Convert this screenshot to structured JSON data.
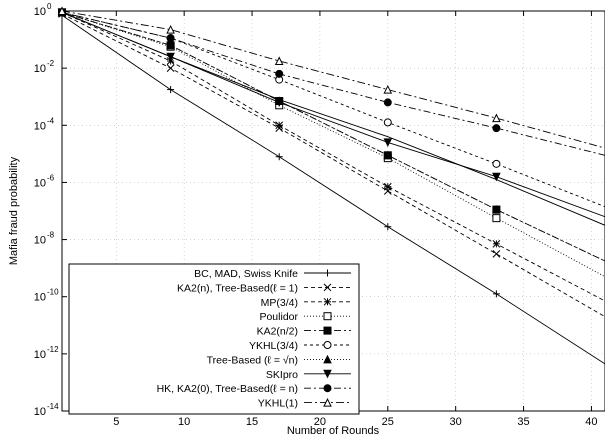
{
  "chart_data": {
    "type": "line",
    "title": "",
    "xlabel": "Number of Rounds",
    "ylabel": "Mafia fraud probability",
    "xlim": [
      1,
      41
    ],
    "ylim_log10": [
      -14,
      0
    ],
    "y_scale": "log",
    "grid": true,
    "legend_position": "bottom-left",
    "x_ticks": [
      "5",
      "10",
      "15",
      "20",
      "25",
      "30",
      "35",
      "40"
    ],
    "x_tick_values": [
      5,
      10,
      15,
      20,
      25,
      30,
      35,
      40
    ],
    "y_tick_exponents": [
      0,
      -2,
      -4,
      -6,
      -8,
      -10,
      -12,
      -14
    ],
    "y_tick_labels": [
      "10",
      "10",
      "10",
      "10",
      "10",
      "10",
      "10",
      "10"
    ],
    "y_tick_exp_labels": [
      "0",
      "-2",
      "-4",
      "-6",
      "-8",
      "-10",
      "-12",
      "-14"
    ],
    "series": [
      {
        "name": "BC, MAD, Swiss Knife",
        "marker": "plus",
        "dash": "",
        "x": [
          1,
          9,
          17,
          25,
          33,
          41
        ],
        "y_log10": [
          -0.15,
          -2.75,
          -5.1,
          -7.55,
          -9.9,
          -12.35
        ]
      },
      {
        "name": "KA2(n), Tree-Based(ℓ = 1)",
        "marker": "x",
        "dash": "4,3",
        "x": [
          1,
          9,
          17,
          25,
          33,
          41
        ],
        "y_log10": [
          -0.1,
          -2,
          -4.1,
          -6.3,
          -8.5,
          -10.7
        ]
      },
      {
        "name": "MP(3/4)",
        "marker": "star",
        "dash": "4,3",
        "x": [
          1,
          9,
          17,
          25,
          33,
          41
        ],
        "y_log10": [
          -0.05,
          -1.75,
          -4,
          -6.15,
          -8.15,
          -10.15
        ]
      },
      {
        "name": "Poulidor",
        "marker": "square-open",
        "dash": "1,2",
        "x": [
          1,
          9,
          17,
          25,
          33,
          41
        ],
        "y_log10": [
          -0.05,
          -1.25,
          -3.3,
          -5.15,
          -7.25,
          -9.3
        ]
      },
      {
        "name": "KA2(n/2)",
        "marker": "square-filled",
        "dash": "7,3,2,3",
        "x": [
          1,
          9,
          17,
          25,
          33,
          41
        ],
        "y_log10": [
          -0.05,
          -1.2,
          -3.15,
          -5.05,
          -6.95,
          -8.75
        ]
      },
      {
        "name": "YKHL(3/4)",
        "marker": "circle-open",
        "dash": "3,3",
        "x": [
          1,
          9,
          17,
          25,
          33,
          41
        ],
        "y_log10": [
          -0.05,
          -0.95,
          -2.4,
          -3.9,
          -5.35,
          -6.85
        ]
      },
      {
        "name": "Tree-Based (ℓ = √n)",
        "marker": "triangle-filled",
        "dash": "1,2",
        "x": [
          1,
          9,
          17,
          25,
          33,
          41
        ],
        "y_log10": [
          -0.05,
          -1.2,
          -3.15,
          -5.05,
          -6.95,
          -8.75
        ]
      },
      {
        "name": "SKIpro",
        "marker": "triangle-down-filled",
        "dash": "",
        "x": [
          1,
          9,
          17,
          25,
          33,
          41
        ],
        "y_log10": [
          -0.05,
          -1.6,
          -3.2,
          -4.6,
          -5.8,
          -7.2
        ]
      },
      {
        "name": "HK, KA2(0), Tree-Based(ℓ = n)",
        "marker": "circle-filled",
        "dash": "7,3,2,3",
        "x": [
          1,
          9,
          17,
          25,
          33,
          41
        ],
        "y_log10": [
          -0.05,
          -0.95,
          -2.2,
          -3.2,
          -4.1,
          -5.05
        ]
      },
      {
        "name": "YKHL(1)",
        "marker": "triangle-open",
        "dash": "8,3,2,3",
        "x": [
          1,
          9,
          17,
          25,
          33,
          41
        ],
        "y_log10": [
          0,
          -0.65,
          -1.75,
          -2.75,
          -3.75,
          -4.8
        ]
      },
      {
        "name": "",
        "marker": "none",
        "dash": "",
        "x": [
          1,
          9,
          17,
          25,
          33,
          41
        ],
        "y_log10": [
          -0.05,
          -1.6,
          -3.1,
          -4.4,
          -5.9,
          -7.5
        ]
      }
    ]
  }
}
